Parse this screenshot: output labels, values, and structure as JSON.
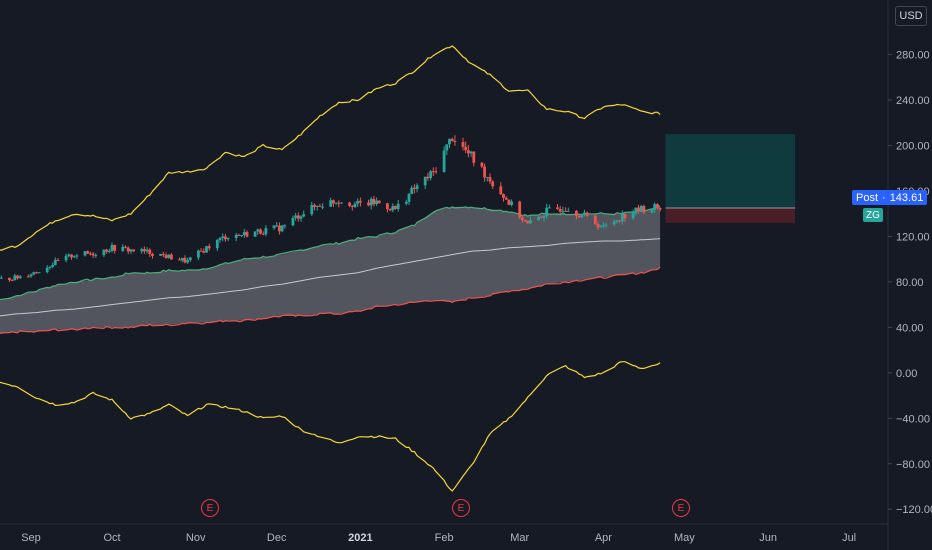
{
  "header": {
    "currency": "USD"
  },
  "price_badge": {
    "label": "Post",
    "value": "143.61"
  },
  "symbol_badge": "ZG",
  "earnings_marker": "E",
  "colors": {
    "up": "#26a69a",
    "down": "#ef5350",
    "envelope": "#f5d736",
    "band_fill": "#5d6068",
    "upper_band": "#4caf7d",
    "lower_band": "#ef5350",
    "mid_line": "#c8c9cc",
    "target_zone": "#0f3b3f",
    "stop_zone": "#4a1e26"
  },
  "chart_data": {
    "type": "candlestick",
    "x_tick_labels": [
      "Sep",
      "Oct",
      "Nov",
      "Dec",
      "2021",
      "Feb",
      "Mar",
      "Apr",
      "May",
      "Jun",
      "Jul"
    ],
    "y_ticks": [
      -120,
      -80,
      -40,
      0,
      40,
      80,
      120,
      160,
      200,
      240,
      280
    ],
    "y_tick_labels": [
      "−120.00",
      "−80.00",
      "−40.00",
      "0.00",
      "40.00",
      "80.00",
      "120.00",
      "160.00",
      "200.00",
      "240.00",
      "280.00"
    ],
    "ylim": [
      -133,
      328
    ],
    "x": [
      "2020-08-20",
      "2020-08-27",
      "2020-09-03",
      "2020-09-10",
      "2020-09-17",
      "2020-09-24",
      "2020-10-01",
      "2020-10-08",
      "2020-10-15",
      "2020-10-22",
      "2020-10-29",
      "2020-11-05",
      "2020-11-12",
      "2020-11-19",
      "2020-11-26",
      "2020-12-03",
      "2020-12-10",
      "2020-12-17",
      "2020-12-24",
      "2020-12-31",
      "2021-01-07",
      "2021-01-14",
      "2021-01-21",
      "2021-01-28",
      "2021-02-04",
      "2021-02-11",
      "2021-02-18",
      "2021-02-25",
      "2021-03-04",
      "2021-03-11",
      "2021-03-18",
      "2021-03-25",
      "2021-04-01",
      "2021-04-08",
      "2021-04-15",
      "2021-04-22"
    ],
    "price": [
      82,
      84,
      89,
      97,
      104,
      105,
      110,
      108,
      106,
      102,
      98,
      110,
      120,
      122,
      125,
      128,
      140,
      148,
      152,
      148,
      150,
      144,
      162,
      176,
      208,
      190,
      170,
      150,
      130,
      142,
      146,
      138,
      128,
      138,
      144,
      146
    ],
    "upper_envelope": [
      108,
      112,
      124,
      134,
      140,
      138,
      134,
      140,
      157,
      176,
      177,
      180,
      194,
      190,
      200,
      196,
      210,
      226,
      238,
      240,
      250,
      255,
      266,
      280,
      288,
      272,
      262,
      248,
      248,
      232,
      230,
      224,
      234,
      236,
      230,
      228
    ],
    "lower_envelope": [
      -8,
      -12,
      -22,
      -28,
      -26,
      -18,
      -24,
      -40,
      -36,
      -28,
      -38,
      -28,
      -30,
      -34,
      -40,
      -38,
      -50,
      -56,
      -62,
      -56,
      -56,
      -58,
      -70,
      -84,
      -104,
      -82,
      -54,
      -40,
      -22,
      -2,
      6,
      -4,
      0,
      10,
      4,
      8
    ],
    "upper_band": [
      64,
      68,
      72,
      77,
      80,
      82,
      84,
      88,
      88,
      90,
      90,
      92,
      96,
      100,
      102,
      104,
      108,
      112,
      114,
      118,
      120,
      124,
      130,
      142,
      146,
      146,
      144,
      142,
      138,
      140,
      140,
      140,
      140,
      140,
      142,
      146
    ],
    "lower_band": [
      34,
      36,
      36,
      38,
      38,
      40,
      40,
      40,
      42,
      42,
      44,
      44,
      46,
      46,
      48,
      50,
      50,
      52,
      52,
      54,
      58,
      60,
      62,
      64,
      62,
      66,
      68,
      72,
      74,
      78,
      80,
      82,
      84,
      86,
      88,
      92
    ],
    "mid_line": [
      50,
      52,
      53,
      55,
      56,
      58,
      60,
      62,
      64,
      66,
      67,
      69,
      71,
      73,
      76,
      78,
      81,
      84,
      86,
      88,
      92,
      95,
      98,
      101,
      104,
      107,
      108,
      110,
      111,
      112,
      114,
      115,
      116,
      116,
      117,
      118
    ],
    "position": {
      "entry": 145,
      "target": 210,
      "stop": 132
    }
  }
}
